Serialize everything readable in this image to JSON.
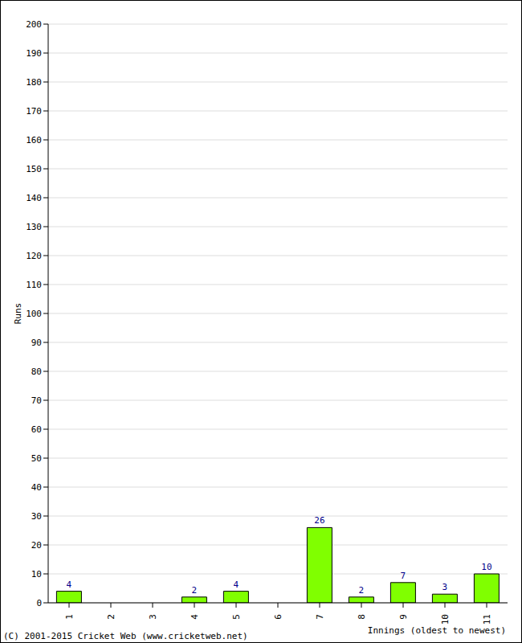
{
  "chart_data": {
    "type": "bar",
    "xlabel": "Innings (oldest to newest)",
    "ylabel": "Runs",
    "annotations": [
      "(C) 2001-2015 Cricket Web (www.cricketweb.net)"
    ],
    "categories": [
      "1",
      "2",
      "3",
      "4",
      "5",
      "6",
      "7",
      "8",
      "9",
      "10",
      "11"
    ],
    "values": [
      4,
      0,
      0,
      2,
      4,
      0,
      26,
      2,
      7,
      3,
      10
    ],
    "color": "#80ff00",
    "ylim": [
      0,
      200
    ],
    "yticks": [
      0,
      10,
      20,
      30,
      40,
      50,
      60,
      70,
      80,
      90,
      100,
      110,
      120,
      130,
      140,
      150,
      160,
      170,
      180,
      190,
      200
    ],
    "grid": true,
    "data_labels": true
  }
}
